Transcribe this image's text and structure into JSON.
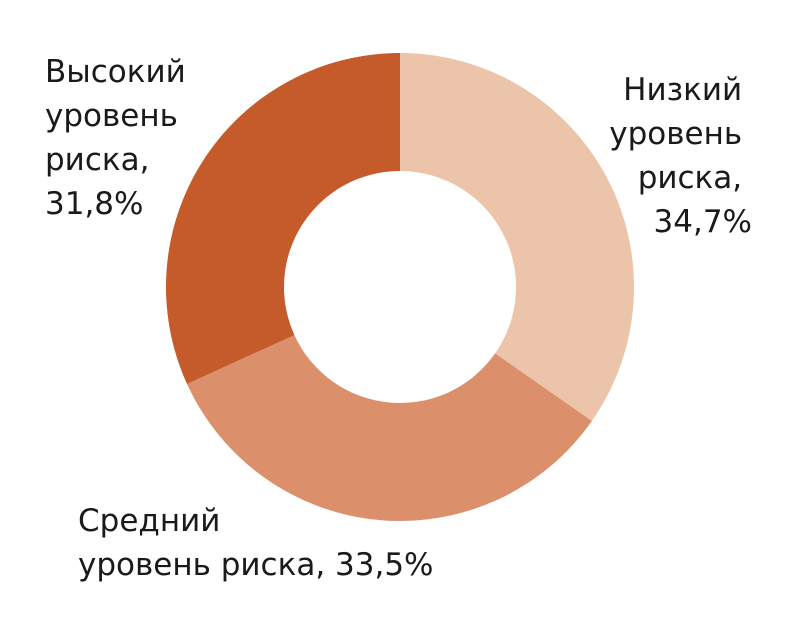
{
  "chart_data": {
    "type": "pie",
    "donut": true,
    "slices": [
      {
        "label_lines": [
          "Низкий",
          "уровень",
          "риска,",
          "34,7%"
        ],
        "value": 34.7,
        "color": "#ecc4a9"
      },
      {
        "label_lines": [
          "Средний",
          "уровень риска, 33,5%"
        ],
        "value": 33.5,
        "color": "#db8f6b"
      },
      {
        "label_lines": [
          "Высокий",
          "уровень",
          "риска,",
          "31,8%"
        ],
        "value": 31.8,
        "color": "#c55a2b"
      }
    ],
    "start_angle_deg": 0,
    "direction": "clockwise"
  }
}
